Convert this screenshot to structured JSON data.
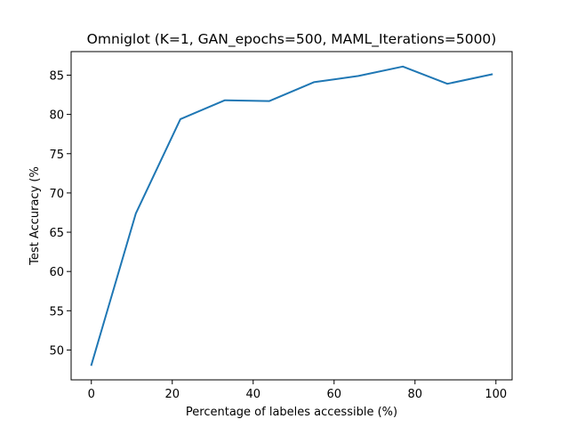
{
  "chart_data": {
    "type": "line",
    "title": "Omniglot (K=1, GAN_epochs=500, MAML_Iterations=5000)",
    "xlabel": "Percentage of labeles accessible (%)",
    "ylabel": "Test Accuracy (%",
    "xlim": [
      -5,
      104
    ],
    "ylim": [
      46.2,
      88.0
    ],
    "xticks": [
      0,
      20,
      40,
      60,
      80,
      100
    ],
    "yticks": [
      50,
      55,
      60,
      65,
      70,
      75,
      80,
      85
    ],
    "xtick_labels": [
      "0",
      "20",
      "40",
      "60",
      "80",
      "100"
    ],
    "ytick_labels": [
      "50",
      "55",
      "60",
      "65",
      "70",
      "75",
      "80",
      "85"
    ],
    "grid": false,
    "legend": "none",
    "series": [
      {
        "color": "#1f77b4",
        "x": [
          0,
          11,
          22,
          33,
          44,
          55,
          66,
          77,
          88,
          99
        ],
        "y": [
          48.1,
          67.4,
          79.4,
          81.8,
          81.7,
          84.1,
          84.9,
          86.1,
          83.9,
          85.1
        ]
      }
    ]
  }
}
